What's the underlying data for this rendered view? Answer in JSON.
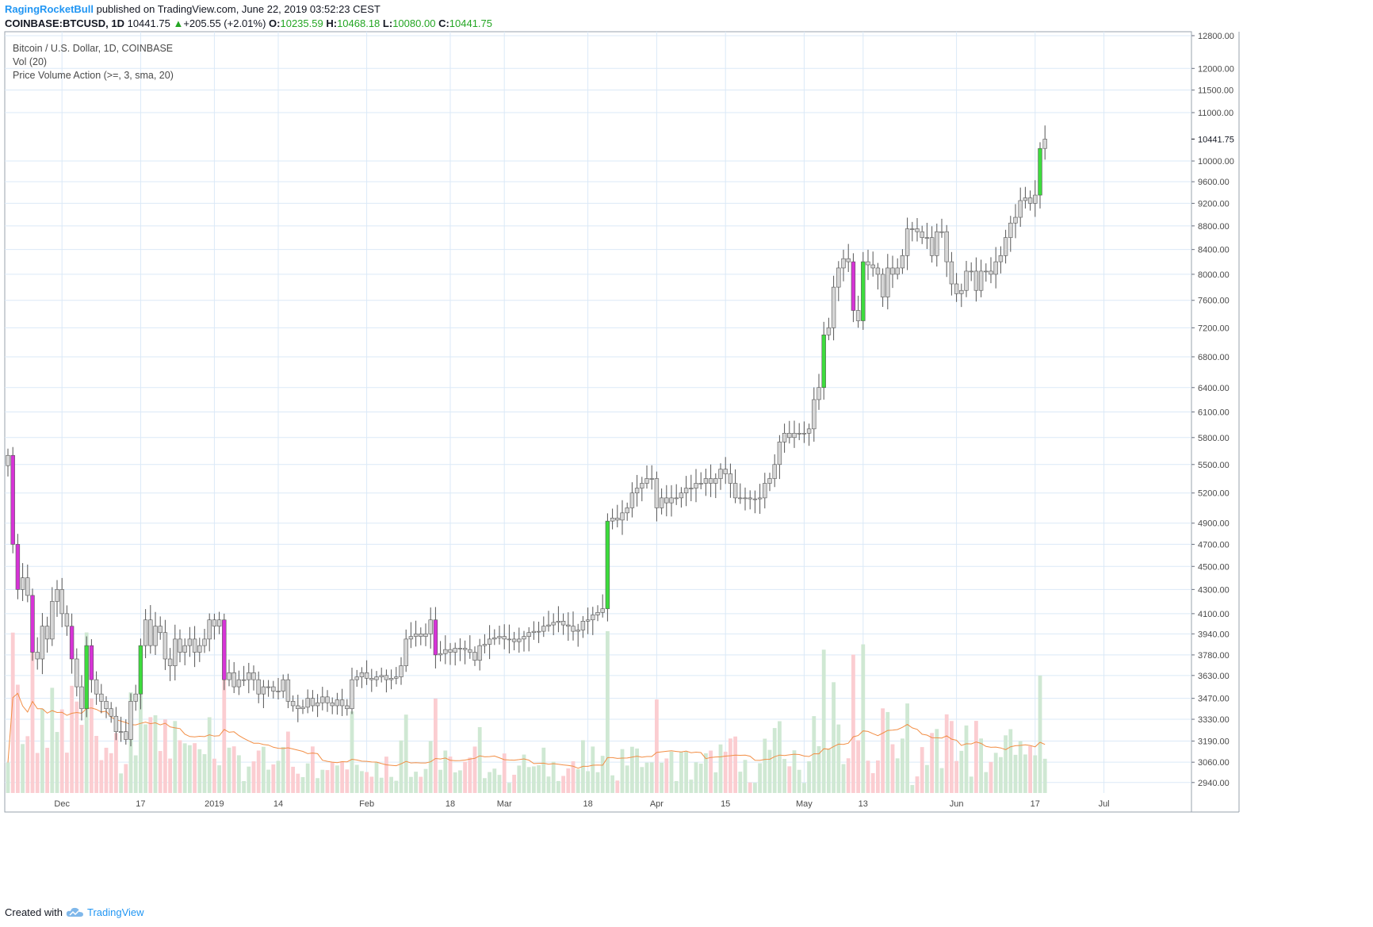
{
  "header": {
    "author": "RagingRocketBull",
    "published_text": "published on TradingView.com, June 22, 2019 03:52:23 CEST",
    "symbol_text": "COINBASE:BTCUSD, 1D",
    "last": "10441.75",
    "arrow": "▲",
    "change": "+205.55 (+2.01%)",
    "open_label": "O:",
    "open": "10235.59",
    "high_label": "H:",
    "high": "10468.18",
    "low_label": "L:",
    "low": "10080.00",
    "close_label": "C:",
    "close": "10441.75"
  },
  "legend": {
    "line1": "Bitcoin / U.S. Dollar, 1D, COINBASE",
    "line2": "Vol (20)",
    "line3": "Price Volume Action (>=, 3, sma, 20)"
  },
  "footer": {
    "created_with": "Created with",
    "brand": "TradingView",
    "logo_icon": "tradingview-cloud-icon"
  },
  "colors": {
    "grid": "#dbe9f7",
    "candle_default": "#d6d6d6",
    "candle_border": "#555555",
    "candle_green": "#3ddc3d",
    "candle_darkgreen": "#1a8a1a",
    "candle_magenta": "#d733d7",
    "candle_red": "#d92020",
    "vol_up": "#cfe8d3",
    "vol_down": "#fbcdd1",
    "vol_ma": "#f28e45",
    "author": "#2196f3",
    "up_text": "#24a623"
  },
  "chart_data": {
    "type": "candlestick",
    "symbol": "BTCUSD",
    "timeframe": "1D",
    "exchange": "COINBASE",
    "y_scale": "log",
    "ylim": [
      2880,
      12900
    ],
    "y_tick_labels": [
      "12800.00",
      "12000.00",
      "11500.00",
      "11000.00",
      "10000.00",
      "9600.00",
      "9200.00",
      "8800.00",
      "8400.00",
      "8000.00",
      "7600.00",
      "7200.00",
      "6800.00",
      "6400.00",
      "6100.00",
      "5800.00",
      "5500.00",
      "5200.00",
      "4900.00",
      "4700.00",
      "4500.00",
      "4300.00",
      "4100.00",
      "3940.00",
      "3780.00",
      "3630.00",
      "3470.00",
      "3330.00",
      "3190.00",
      "3060.00",
      "2940.00"
    ],
    "last_price_label": "10441.75",
    "x_tick_labels": [
      "Dec",
      "17",
      "2019",
      "14",
      "Feb",
      "18",
      "Mar",
      "18",
      "Apr",
      "15",
      "May",
      "13",
      "Jun",
      "17",
      "Jul"
    ],
    "x_tick_dates": [
      "2018-12-01",
      "2018-12-17",
      "2019-01-01",
      "2019-01-14",
      "2019-02-01",
      "2019-02-18",
      "2019-03-01",
      "2019-03-18",
      "2019-04-01",
      "2019-04-15",
      "2019-05-01",
      "2019-05-13",
      "2019-06-01",
      "2019-06-17",
      "2019-07-01"
    ],
    "start_date": "2018-11-20",
    "end_date": "2019-06-22",
    "closes": [
      5600,
      4700,
      4300,
      4400,
      4250,
      3800,
      3750,
      4000,
      3900,
      4200,
      4300,
      4100,
      4000,
      3750,
      3550,
      3400,
      3850,
      3600,
      3500,
      3450,
      3400,
      3350,
      3250,
      3250,
      3200,
      3450,
      3500,
      3850,
      4050,
      3850,
      4000,
      3950,
      3750,
      3700,
      3900,
      3800,
      3850,
      3900,
      3800,
      3850,
      3900,
      4050,
      4000,
      4050,
      3600,
      3650,
      3550,
      3600,
      3600,
      3650,
      3600,
      3500,
      3550,
      3550,
      3520,
      3520,
      3600,
      3450,
      3420,
      3400,
      3410,
      3470,
      3420,
      3440,
      3480,
      3440,
      3420,
      3460,
      3420,
      3400,
      3600,
      3620,
      3650,
      3610,
      3600,
      3620,
      3630,
      3600,
      3610,
      3620,
      3700,
      3900,
      3920,
      3940,
      3920,
      3940,
      4050,
      3780,
      3790,
      3820,
      3800,
      3830,
      3830,
      3820,
      3800,
      3740,
      3850,
      3860,
      3900,
      3910,
      3920,
      3900,
      3900,
      3880,
      3900,
      3920,
      3950,
      3960,
      3960,
      4000,
      4010,
      4030,
      4040,
      4010,
      4000,
      3960,
      3970,
      4040,
      4050,
      4090,
      4110,
      4140,
      4920,
      4950,
      4930,
      5000,
      5050,
      5200,
      5250,
      5300,
      5350,
      5350,
      5050,
      5150,
      5100,
      5150,
      5150,
      5200,
      5250,
      5250,
      5300,
      5300,
      5350,
      5300,
      5350,
      5450,
      5400,
      5300,
      5150,
      5150,
      5150,
      5140,
      5140,
      5150,
      5300,
      5350,
      5500,
      5750,
      5850,
      5800,
      5850,
      5850,
      5850,
      5900,
      6250,
      6400,
      7100,
      7200,
      7800,
      8100,
      8250,
      8200,
      7450,
      7300,
      8200,
      8150,
      8100,
      8000,
      7650,
      8100,
      8000,
      8100,
      8300,
      8750,
      8750,
      8700,
      8600,
      8600,
      8300,
      8700,
      8700,
      8200,
      7850,
      7700,
      7750,
      8050,
      8050,
      7750,
      8050,
      8050,
      8000,
      8200,
      8300,
      8600,
      8850,
      8950,
      9250,
      9300,
      9200,
      9350,
      10250,
      10440
    ]
  }
}
